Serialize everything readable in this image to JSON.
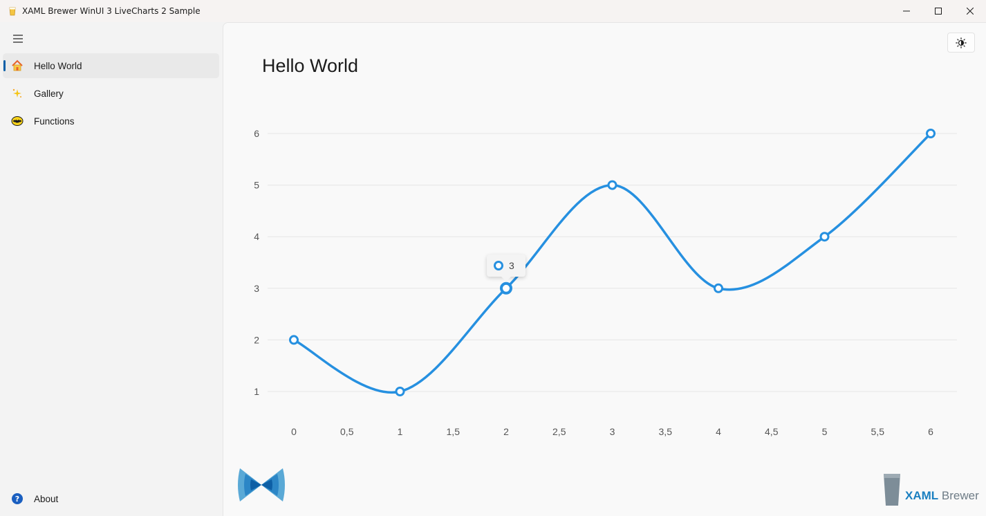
{
  "window": {
    "title": "XAML Brewer WinUI 3 LiveCharts 2 Sample"
  },
  "sidebar": {
    "items": [
      {
        "label": "Hello World",
        "icon": "home-icon",
        "selected": true
      },
      {
        "label": "Gallery",
        "icon": "sparkle-icon",
        "selected": false
      },
      {
        "label": "Functions",
        "icon": "bat-icon",
        "selected": false
      }
    ],
    "footer": {
      "label": "About",
      "icon": "help-icon"
    }
  },
  "page": {
    "title": "Hello World"
  },
  "chart_data": {
    "type": "line",
    "smooth": true,
    "x": [
      0,
      1,
      2,
      3,
      4,
      5,
      6
    ],
    "y": [
      2,
      1,
      3,
      5,
      3,
      4,
      6
    ],
    "x_ticks": [
      "0",
      "0,5",
      "1",
      "1,5",
      "2",
      "2,5",
      "3",
      "3,5",
      "4",
      "4,5",
      "5",
      "5,5",
      "6"
    ],
    "y_ticks": [
      "1",
      "2",
      "3",
      "4",
      "5",
      "6"
    ],
    "xlim": [
      0,
      6
    ],
    "ylim": [
      1,
      6
    ],
    "grid": true,
    "series_color": "#2690e0",
    "tooltip": {
      "x": 2,
      "value": "3"
    }
  },
  "branding": {
    "logo_strong": "XAML",
    "logo_light": "Brewer"
  },
  "colors": {
    "accent": "#0a5fa8",
    "series": "#2690e0"
  }
}
